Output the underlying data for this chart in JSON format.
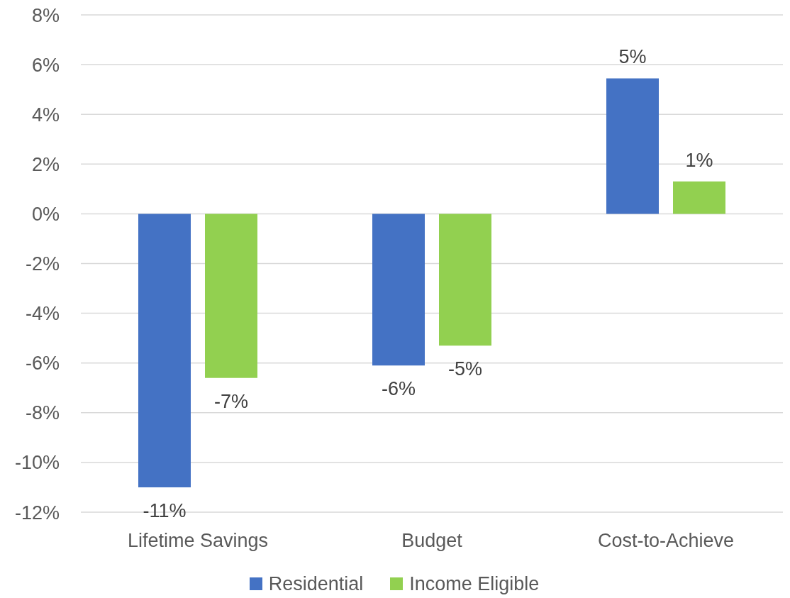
{
  "chart_data": {
    "type": "bar",
    "categories": [
      "Lifetime Savings",
      "Budget",
      "Cost-to-Achieve"
    ],
    "series": [
      {
        "name": "Residential",
        "color": "#4472c4",
        "values": [
          -11.0,
          -6.1,
          5.45
        ],
        "value_labels": [
          "-11%",
          "-6%",
          "5%"
        ]
      },
      {
        "name": "Income Eligible",
        "color": "#92d050",
        "values": [
          -6.6,
          -5.3,
          1.3
        ],
        "value_labels": [
          "-7%",
          "-5%",
          "1%"
        ]
      }
    ],
    "ylim": [
      -12,
      8
    ],
    "yticks": [
      {
        "value": 8,
        "label": "8%"
      },
      {
        "value": 6,
        "label": "6%"
      },
      {
        "value": 4,
        "label": "4%"
      },
      {
        "value": 2,
        "label": "2%"
      },
      {
        "value": 0,
        "label": "0%"
      },
      {
        "value": -2,
        "label": "-2%"
      },
      {
        "value": -4,
        "label": "-4%"
      },
      {
        "value": -6,
        "label": "-6%"
      },
      {
        "value": -8,
        "label": "-8%"
      },
      {
        "value": -10,
        "label": "-10%"
      },
      {
        "value": -12,
        "label": "-12%"
      }
    ],
    "grid": "y",
    "legend": "bottom"
  }
}
